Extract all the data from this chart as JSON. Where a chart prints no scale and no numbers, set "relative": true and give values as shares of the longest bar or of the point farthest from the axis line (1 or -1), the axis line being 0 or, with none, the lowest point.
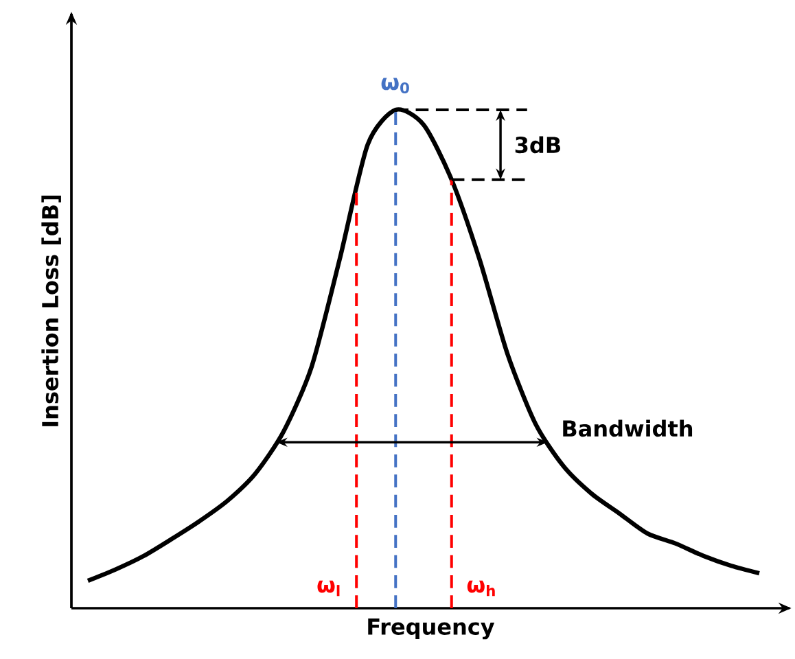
{
  "chart_data": {
    "type": "line",
    "relative": true,
    "xlabel": "Frequency",
    "ylabel": "Insertion Loss [dB]",
    "categories": [
      null,
      null,
      null,
      null,
      null,
      null,
      null,
      null,
      null,
      null,
      null,
      null,
      null,
      null,
      null,
      null,
      null,
      null,
      null,
      null,
      null,
      null,
      null,
      null,
      null
    ],
    "series": [
      {
        "color": "#000000",
        "values": [
          0.055,
          0.078,
          0.105,
          0.139,
          0.175,
          0.216,
          0.271,
          0.355,
          0.485,
          0.7,
          0.93,
          1,
          0.97,
          0.86,
          0.7,
          0.51,
          0.37,
          0.285,
          0.23,
          0.19,
          0.15,
          0.13,
          0.105,
          0.085,
          0.07
        ]
      }
    ],
    "annotations": [
      "ω$_{l}$",
      "ω$_{0}$",
      "ω$_{h}$",
      "3dB",
      "Bandwidth"
    ],
    "marker": "none",
    "line_style": "solid"
  }
}
